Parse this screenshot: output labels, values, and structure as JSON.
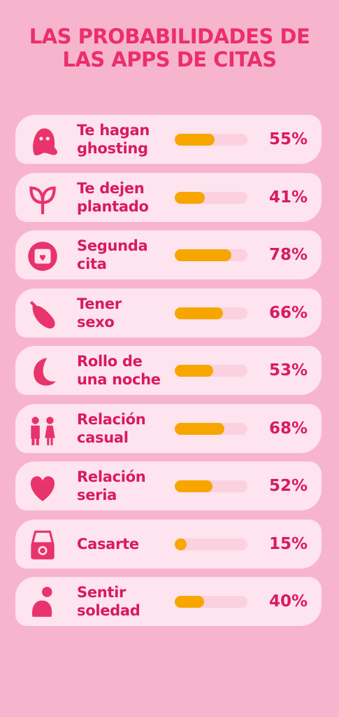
{
  "chart_data": {
    "type": "bar",
    "title": "LAS PROBABILIDADES DE\nLAS APPS DE CITAS",
    "categories": [
      "Te hagan\nghosting",
      "Te dejen\nplantado",
      "Segunda\ncita",
      "Tener\nsexo",
      "Rollo de\nuna noche",
      "Relación\ncasual",
      "Relación\nseria",
      "Casarte",
      "Sentir\nsoledad"
    ],
    "values": [
      55,
      41,
      78,
      66,
      53,
      68,
      52,
      15,
      40
    ],
    "value_labels": [
      "55%",
      "41%",
      "78%",
      "66%",
      "53%",
      "68%",
      "52%",
      "15%",
      "40%"
    ],
    "color": "#f7a600",
    "xlim": [
      0,
      100
    ]
  }
}
